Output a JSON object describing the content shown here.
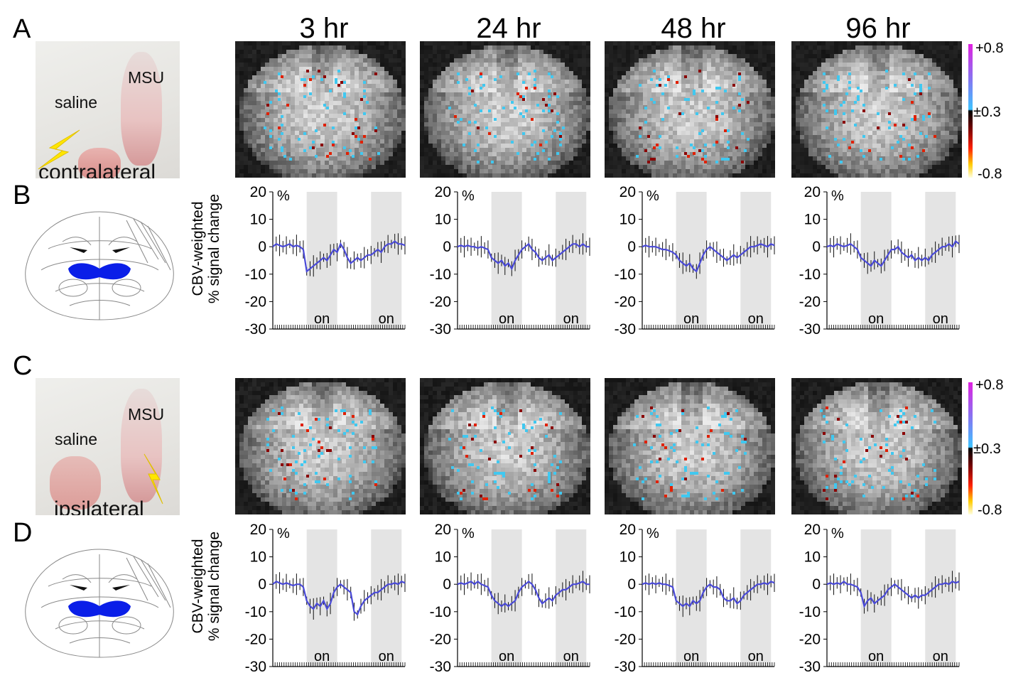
{
  "panels": {
    "a": "A",
    "b": "B",
    "c": "C",
    "d": "D"
  },
  "time_points": [
    "3 hr",
    "24 hr",
    "48 hr",
    "96 hr"
  ],
  "photo_top": {
    "msu": "MSU",
    "saline": "saline",
    "side": "contralateral"
  },
  "photo_bottom": {
    "msu": "MSU",
    "saline": "saline",
    "side": "ipsilateral"
  },
  "colorbar": {
    "top": "+0.8",
    "mid": "±0.3",
    "bottom": "-0.8",
    "color_top": "#e020e0",
    "color_mid": "#40c0ff",
    "color_low": "#ff2000",
    "color_bottom": "#ffff80"
  },
  "y_axis_label_line1": "CBV-weighted",
  "y_axis_label_line2": "% signal change",
  "chart_data": [
    {
      "type": "line",
      "row": "B",
      "timepoint": "3 hr",
      "unit_label": "%",
      "ylim": [
        -30,
        20
      ],
      "yticks": [
        20,
        10,
        0,
        -10,
        -20,
        -30
      ],
      "stim_label": "on",
      "stim_blocks": [
        [
          10,
          19
        ],
        [
          29,
          38
        ]
      ],
      "values": [
        0,
        1,
        0.5,
        0,
        0.5,
        1,
        0,
        0.5,
        0,
        -1,
        -9,
        -8,
        -7,
        -6,
        -5,
        -4,
        -5,
        -3,
        -1,
        -2,
        1,
        -1,
        -4,
        -6,
        -5,
        -4,
        -5,
        -4,
        -3,
        -3,
        -2,
        -1,
        -2,
        0,
        1,
        1,
        2,
        1,
        1,
        0.5
      ],
      "series_color": "#4a4ad8"
    },
    {
      "type": "line",
      "row": "B",
      "timepoint": "24 hr",
      "unit_label": "%",
      "ylim": [
        -30,
        20
      ],
      "yticks": [
        20,
        10,
        0,
        -10,
        -20,
        -30
      ],
      "stim_label": "on",
      "stim_blocks": [
        [
          10,
          19
        ],
        [
          29,
          38
        ]
      ],
      "values": [
        0,
        0.5,
        0,
        0.5,
        0,
        0,
        -0.5,
        0,
        -0.5,
        -1,
        -4,
        -5,
        -6,
        -5,
        -7,
        -6,
        -8,
        -5,
        -3,
        -1,
        0,
        1,
        -1,
        -2,
        -4,
        -5,
        -4,
        -3,
        -5,
        -4,
        -3,
        -2,
        -1,
        0,
        1,
        1,
        0,
        1,
        0,
        0
      ],
      "series_color": "#4a4ad8"
    },
    {
      "type": "line",
      "row": "B",
      "timepoint": "48 hr",
      "unit_label": "%",
      "ylim": [
        -30,
        20
      ],
      "yticks": [
        20,
        10,
        0,
        -10,
        -20,
        -30
      ],
      "stim_label": "on",
      "stim_blocks": [
        [
          10,
          19
        ],
        [
          29,
          38
        ]
      ],
      "values": [
        0,
        0.5,
        0,
        0,
        0,
        -0.5,
        -1,
        -1,
        -1.5,
        -2,
        -3,
        -5,
        -6,
        -7,
        -6,
        -8,
        -9,
        -6,
        -3,
        -1,
        0,
        -1,
        -2,
        -3,
        -4,
        -5,
        -4,
        -3,
        -4,
        -3,
        -2,
        -1,
        0,
        0,
        0.5,
        1,
        0.5,
        0,
        1,
        0.5
      ],
      "series_color": "#4a4ad8"
    },
    {
      "type": "line",
      "row": "B",
      "timepoint": "96 hr",
      "unit_label": "%",
      "ylim": [
        -30,
        20
      ],
      "yticks": [
        20,
        10,
        0,
        -10,
        -20,
        -30
      ],
      "stim_label": "on",
      "stim_blocks": [
        [
          10,
          19
        ],
        [
          29,
          38
        ]
      ],
      "values": [
        0,
        0.5,
        0,
        1,
        0.5,
        0,
        0.5,
        1,
        0,
        -1,
        -4,
        -5,
        -6,
        -7,
        -5,
        -6,
        -7,
        -5,
        -3,
        -1,
        -1,
        0,
        -2,
        -3,
        -4,
        -3,
        -5,
        -4,
        -5,
        -4,
        -5,
        -3,
        -2,
        -1,
        0,
        0,
        1,
        0,
        2,
        1
      ],
      "series_color": "#4a4ad8"
    },
    {
      "type": "line",
      "row": "D",
      "timepoint": "3 hr",
      "unit_label": "%",
      "ylim": [
        -30,
        20
      ],
      "yticks": [
        20,
        10,
        0,
        -10,
        -20,
        -30
      ],
      "stim_label": "on",
      "stim_blocks": [
        [
          10,
          19
        ],
        [
          29,
          38
        ]
      ],
      "values": [
        0,
        1,
        0.5,
        0,
        0.5,
        0,
        -0.5,
        0,
        0,
        -1,
        -6,
        -8,
        -9,
        -7,
        -8,
        -6,
        -9,
        -7,
        -3,
        -1,
        0,
        -1,
        -2,
        -3,
        -10,
        -11,
        -8,
        -6,
        -5,
        -4,
        -3,
        -3,
        -2,
        -1,
        0,
        0,
        0.5,
        0,
        1,
        0.5
      ],
      "series_color": "#4a4ad8"
    },
    {
      "type": "line",
      "row": "D",
      "timepoint": "24 hr",
      "unit_label": "%",
      "ylim": [
        -30,
        20
      ],
      "yticks": [
        20,
        10,
        0,
        -10,
        -20,
        -30
      ],
      "stim_label": "on",
      "stim_blocks": [
        [
          10,
          19
        ],
        [
          29,
          38
        ]
      ],
      "values": [
        0,
        0.5,
        0,
        0.5,
        1,
        0,
        1,
        0,
        -0.5,
        -1,
        -4,
        -6,
        -7,
        -8,
        -7,
        -8,
        -7,
        -6,
        -3,
        -1,
        0,
        1,
        0,
        -2,
        -5,
        -7,
        -6,
        -5,
        -6,
        -4,
        -3,
        -2,
        -2,
        -1,
        0,
        0,
        0.5,
        1,
        0,
        0
      ],
      "series_color": "#4a4ad8"
    },
    {
      "type": "line",
      "row": "D",
      "timepoint": "48 hr",
      "unit_label": "%",
      "ylim": [
        -30,
        20
      ],
      "yticks": [
        20,
        10,
        0,
        -10,
        -20,
        -30
      ],
      "stim_label": "on",
      "stim_blocks": [
        [
          10,
          19
        ],
        [
          29,
          38
        ]
      ],
      "values": [
        0,
        0.5,
        0,
        0.5,
        0,
        0.5,
        0,
        0,
        -0.5,
        -1,
        -6,
        -7,
        -8,
        -7,
        -8,
        -6,
        -7,
        -6,
        -3,
        -1,
        0,
        -1,
        -1,
        -2,
        -5,
        -6,
        -6,
        -5,
        -7,
        -6,
        -4,
        -3,
        -2,
        -1,
        0,
        0,
        0.5,
        0,
        1,
        0.5
      ],
      "series_color": "#4a4ad8"
    },
    {
      "type": "line",
      "row": "D",
      "timepoint": "96 hr",
      "unit_label": "%",
      "ylim": [
        -30,
        20
      ],
      "yticks": [
        20,
        10,
        0,
        -10,
        -20,
        -30
      ],
      "stim_label": "on",
      "stim_blocks": [
        [
          10,
          19
        ],
        [
          29,
          38
        ]
      ],
      "values": [
        0,
        0.5,
        0,
        0.5,
        0,
        1,
        0,
        0,
        -0.5,
        -1,
        -3,
        -8,
        -6,
        -5,
        -7,
        -6,
        -5,
        -4,
        -2,
        -1,
        0,
        -1,
        -2,
        -3,
        -4,
        -5,
        -4,
        -5,
        -4,
        -4,
        -3,
        -2,
        -1,
        0,
        0,
        0.5,
        0,
        1,
        0.5,
        1
      ],
      "series_color": "#4a4ad8"
    }
  ]
}
